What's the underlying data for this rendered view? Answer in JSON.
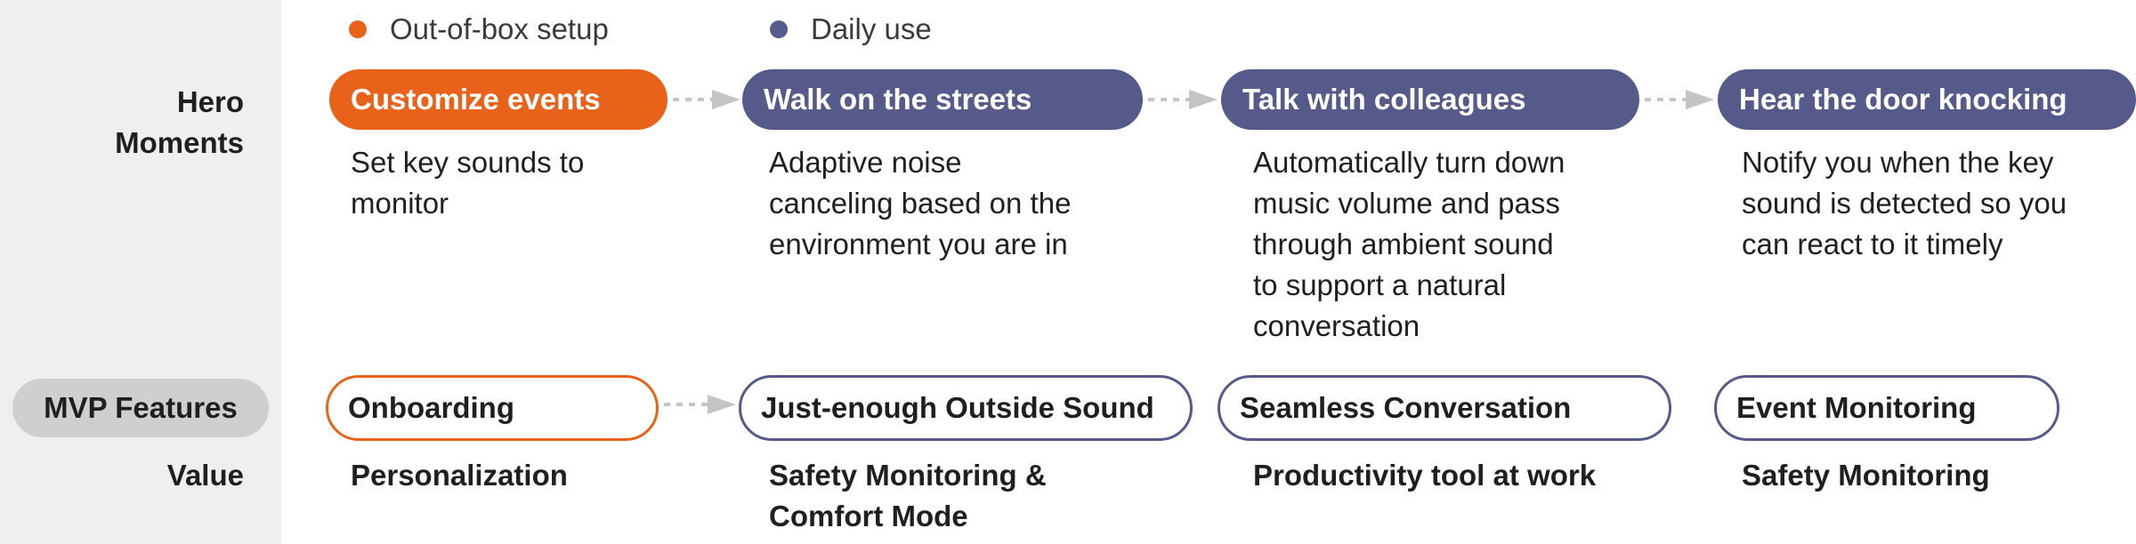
{
  "colors": {
    "setup": "#e8621a",
    "daily": "#555a8a",
    "arrow": "#c4c4c4",
    "sidebar": "#efefef",
    "mvp_pill": "#cfcfcf"
  },
  "legend": [
    {
      "label": "Out-of-box setup",
      "color": "#e8621a"
    },
    {
      "label": "Daily use",
      "color": "#555a8a"
    }
  ],
  "rows": {
    "hero_moments": "Hero\nMoments",
    "mvp_features": "MVP Features",
    "value": "Value"
  },
  "columns": [
    {
      "phase": "setup",
      "moment": "Customize events",
      "description": "Set key sounds to\nmonitor",
      "feature": "Onboarding",
      "value": "Personalization"
    },
    {
      "phase": "daily",
      "moment": "Walk on the streets",
      "description": "Adaptive noise\ncanceling based on the\nenvironment you are in",
      "feature": "Just-enough Outside Sound",
      "value": "Safety  Monitoring &\nComfort Mode"
    },
    {
      "phase": "daily",
      "moment": "Talk with colleagues",
      "description": "Automatically turn down\nmusic volume and pass\nthrough ambient sound\nto support a natural\nconversation",
      "feature": "Seamless Conversation",
      "value": "Productivity tool at work"
    },
    {
      "phase": "daily",
      "moment": "Hear the door knocking",
      "description": "Notify you when the key\nsound is detected so you\ncan react to it timely",
      "feature": "Event Monitoring",
      "value": "Safety Monitoring"
    }
  ]
}
